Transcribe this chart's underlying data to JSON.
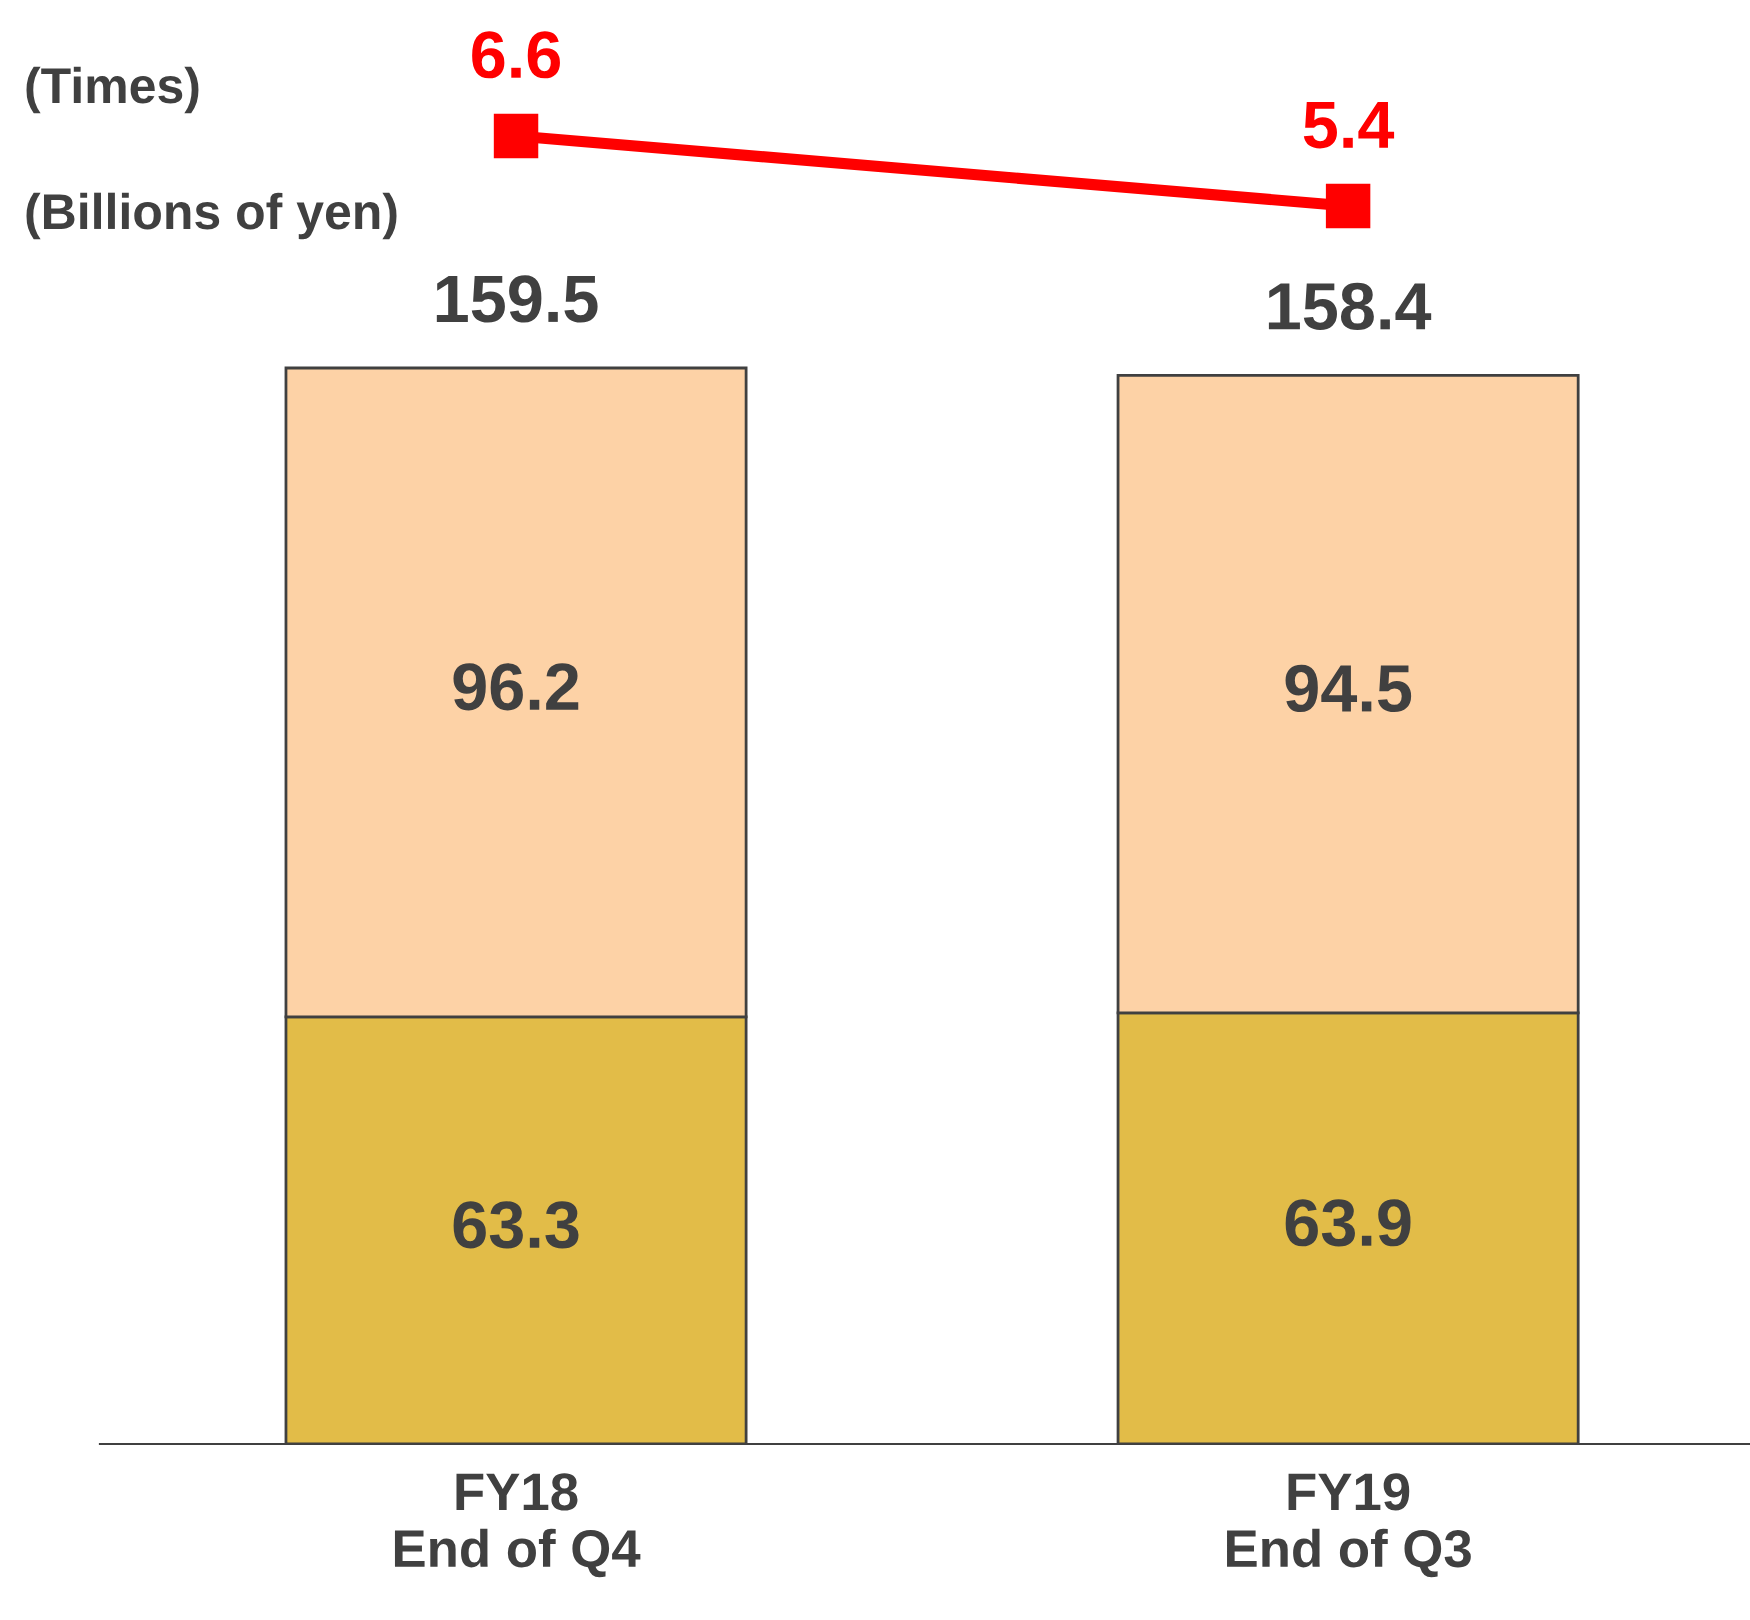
{
  "chart_data": [
    {
      "type": "bar",
      "stacked": true,
      "categories": [
        "FY18\nEnd of Q4",
        "FY19\nEnd of Q3"
      ],
      "ylabel": "(Billions of yen)",
      "tick_labels": "x",
      "data_labels": true,
      "totals": [
        "159.5",
        "158.4"
      ],
      "series": [
        {
          "color": "#e2bc48",
          "values": [
            63.3,
            63.9
          ]
        },
        {
          "color": "#fdd2a6",
          "values": [
            96.2,
            94.5
          ]
        }
      ]
    },
    {
      "type": "line",
      "categories": [
        null,
        null
      ],
      "ylabel": "(Times)",
      "tick_labels": false,
      "data_labels": true,
      "marker": "square",
      "line_style": "solid",
      "series": [
        {
          "color": "#ff0000",
          "values": [
            6.6,
            5.4
          ]
        }
      ]
    }
  ]
}
